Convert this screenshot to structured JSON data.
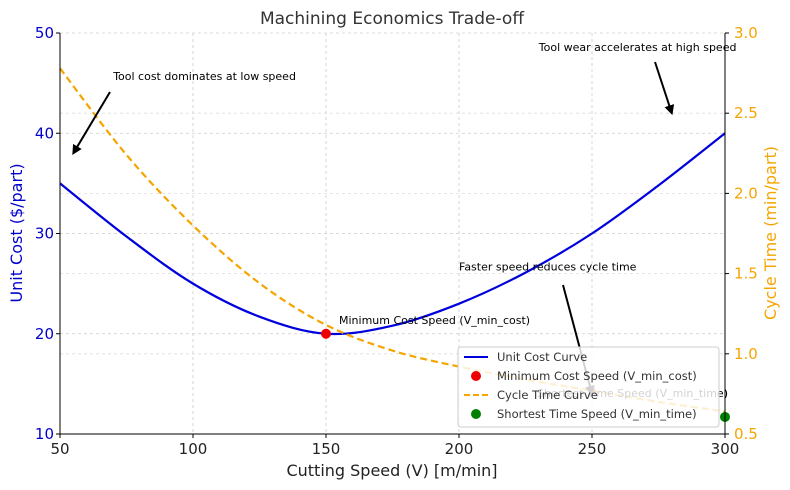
{
  "chart_data": {
    "type": "line",
    "title": "Machining Economics Trade-off",
    "xlabel": "Cutting Speed (V) [m/min]",
    "ylabel_left": "Unit Cost ($/part)",
    "ylabel_right": "Cycle Time (min/part)",
    "xlim": [
      50,
      300
    ],
    "ylim_left": [
      10,
      50
    ],
    "ylim_right": [
      0.5,
      3.0
    ],
    "x_ticks": [
      "50",
      "100",
      "150",
      "200",
      "250",
      "300"
    ],
    "y_left_ticks": [
      "10",
      "20",
      "30",
      "40",
      "50"
    ],
    "y_right_ticks": [
      "0.5",
      "1.0",
      "1.5",
      "2.0",
      "2.5",
      "3.0"
    ],
    "grid": true,
    "legend_position": "lower-right",
    "colors": {
      "cost": "#0000dd",
      "time": "#f5a500",
      "min_cost_marker": "#ee0000",
      "min_time_marker": "#008000",
      "left_axis": "#0000cc",
      "right_axis": "#f5a500"
    },
    "series": [
      {
        "name": "Unit Cost Curve",
        "axis": "left",
        "x": [
          50,
          75,
          100,
          125,
          150,
          175,
          200,
          225,
          250,
          275,
          300
        ],
        "y": [
          35.0,
          29.7,
          25.0,
          21.7,
          20.0,
          20.8,
          23.0,
          26.1,
          30.0,
          34.8,
          40.0
        ]
      },
      {
        "name": "Cycle Time Curve",
        "axis": "right",
        "x": [
          50,
          75,
          100,
          125,
          150,
          175,
          200,
          225,
          250,
          275,
          300
        ],
        "y": [
          2.78,
          2.24,
          1.8,
          1.44,
          1.18,
          1.02,
          0.92,
          0.84,
          0.77,
          0.7,
          0.64
        ]
      }
    ],
    "points": [
      {
        "name": "Minimum Cost Speed (V_min_cost)",
        "axis": "left",
        "x": 150,
        "y": 20.0,
        "label": "Minimum Cost Speed (V_min_cost)"
      },
      {
        "name": "Shortest Time Speed (V_min_time)",
        "axis": "left",
        "x": 300,
        "y": 11.7,
        "label": "Shortest Time Speed (V_min_time)"
      }
    ],
    "annotations": [
      {
        "text": "Tool cost dominates at low speed",
        "text_x": 70,
        "text_y": 45.3,
        "arrow_x": 55,
        "arrow_y": 38
      },
      {
        "text": "Tool wear accelerates at high speed",
        "text_x": 230,
        "text_y": 48.2,
        "arrow_x": 280,
        "arrow_y": 42
      },
      {
        "text": "Faster speed reduces cycle time",
        "text_x": 200,
        "text_y": 26.3,
        "arrow_x": 250,
        "arrow_y": 14
      }
    ]
  }
}
